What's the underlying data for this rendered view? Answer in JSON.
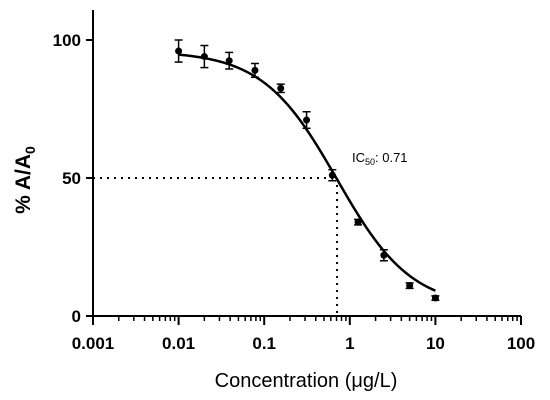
{
  "chart_data": {
    "type": "scatter",
    "xscale": "log",
    "xlim": [
      0.001,
      100
    ],
    "ylim": [
      0,
      100
    ],
    "x_ticks": [
      "0.001",
      "0.01",
      "0.1",
      "1",
      "10",
      "100"
    ],
    "y_ticks": [
      "0",
      "50",
      "100"
    ],
    "xlabel": "Concentration (μg/L)",
    "ylabel": {
      "main": "% A/A",
      "sub": "0"
    },
    "annotation": {
      "main": "IC",
      "sub": "50",
      "suffix": ": 0.71"
    },
    "ic50": 0.71,
    "reference_y": 50,
    "fit": {
      "model": "four-parameter logistic",
      "top": 96,
      "bottom": 3,
      "ec50": 0.71,
      "hill": 1.0
    },
    "points": [
      {
        "x": 0.01,
        "y": 96,
        "err": 4
      },
      {
        "x": 0.02,
        "y": 94,
        "err": 4
      },
      {
        "x": 0.039,
        "y": 92.5,
        "err": 3
      },
      {
        "x": 0.078,
        "y": 89,
        "err": 2.5
      },
      {
        "x": 0.156,
        "y": 82.5,
        "err": 1.5
      },
      {
        "x": 0.3125,
        "y": 71,
        "err": 3
      },
      {
        "x": 0.625,
        "y": 51,
        "err": 2
      },
      {
        "x": 1.25,
        "y": 34,
        "err": 1
      },
      {
        "x": 2.5,
        "y": 22,
        "err": 2
      },
      {
        "x": 5,
        "y": 11,
        "err": 1
      },
      {
        "x": 10,
        "y": 6.5,
        "err": 0.8
      }
    ],
    "grid": false
  }
}
